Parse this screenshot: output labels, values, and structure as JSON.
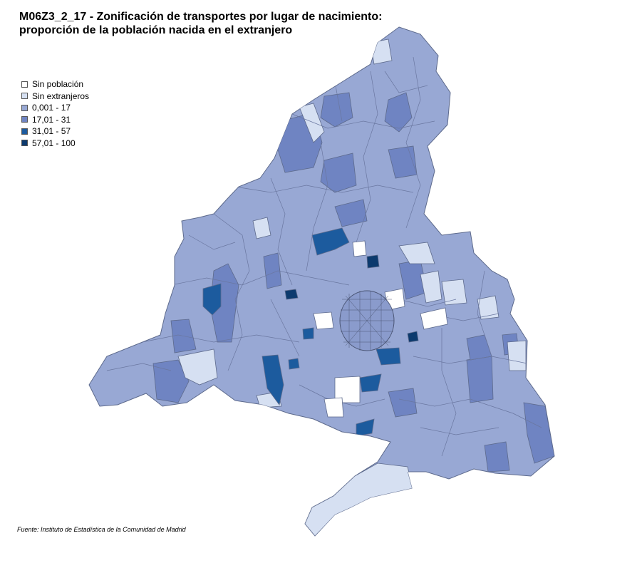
{
  "title": {
    "line1": "M06Z3_2_17 - Zonificación de transportes por lugar de nacimiento:",
    "line2": "proporción de la población nacida en el extranjero"
  },
  "legend": [
    {
      "label": "Sin población",
      "color": "#ffffff"
    },
    {
      "label": "Sin extranjeros",
      "color": "#d6e0f2"
    },
    {
      "label": "0,001 - 17",
      "color": "#98a8d4"
    },
    {
      "label": "17,01 - 31",
      "color": "#6f84c2"
    },
    {
      "label": "31,01 - 57",
      "color": "#1c5b9e"
    },
    {
      "label": "57,01 - 100",
      "color": "#0c3a6e"
    }
  ],
  "source": "Fuente: Instituto de Estadística de la Comunidad de Madrid"
}
